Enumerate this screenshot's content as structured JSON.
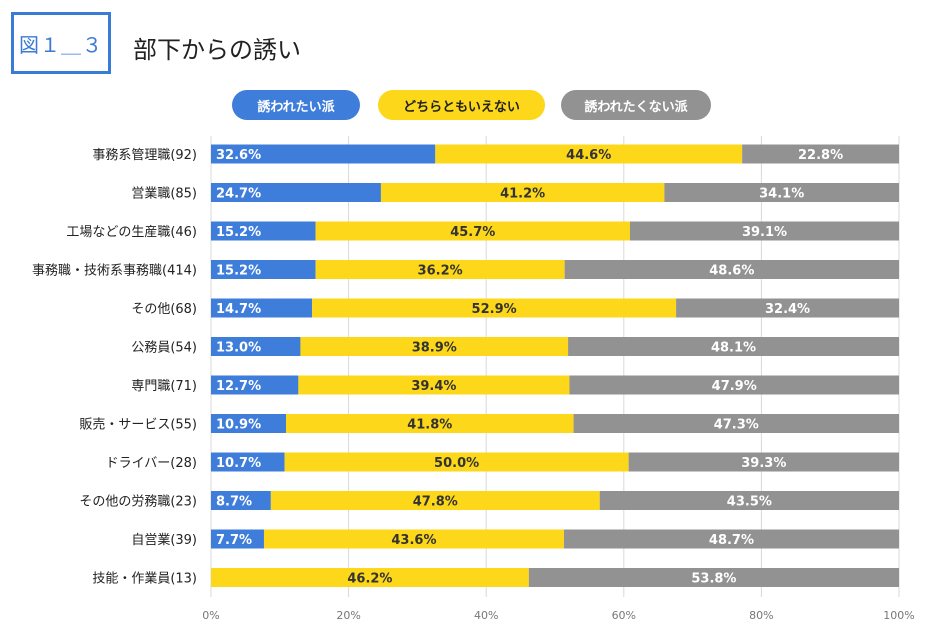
{
  "figure_label": "図１＿３",
  "title": "部下からの誘い",
  "colors": {
    "want": "#3f7ddb",
    "neutral": "#fdd719",
    "not": "#929292",
    "grid": "#d9d9d9"
  },
  "chart_data": {
    "type": "bar",
    "orientation": "horizontal",
    "stacked": true,
    "percent": true,
    "categories": [
      "事務系管理職(92)",
      "営業職(85)",
      "工場などの生産職(46)",
      "事務職・技術系事務職(414)",
      "その他(68)",
      "公務員(54)",
      "専門職(71)",
      "販売・サービス(55)",
      "ドライバー(28)",
      "その他の労務職(23)",
      "自営業(39)",
      "技能・作業員(13)"
    ],
    "series": [
      {
        "name": "誘われたい派",
        "values": [
          32.6,
          24.7,
          15.2,
          15.2,
          14.7,
          13.0,
          12.7,
          10.9,
          10.7,
          8.7,
          7.7,
          0
        ],
        "labels": [
          "32.6%",
          "24.7%",
          "15.2%",
          "15.2%",
          "14.7%",
          "13.0%",
          "12.7%",
          "10.9%",
          "10.7%",
          "8.7%",
          "7.7%",
          ""
        ]
      },
      {
        "name": "どちらともいえない",
        "values": [
          44.6,
          41.2,
          45.7,
          36.2,
          52.9,
          38.9,
          39.4,
          41.8,
          50.0,
          47.8,
          43.6,
          46.2
        ],
        "labels": [
          "44.6%",
          "41.2%",
          "45.7%",
          "36.2%",
          "52.9%",
          "38.9%",
          "39.4%",
          "41.8%",
          "50.0%",
          "47.8%",
          "43.6%",
          "46.2%"
        ]
      },
      {
        "name": "誘われたくない派",
        "values": [
          22.8,
          34.1,
          39.1,
          48.6,
          32.4,
          48.1,
          47.9,
          47.3,
          39.3,
          43.5,
          48.7,
          53.8
        ],
        "labels": [
          "22.8%",
          "34.1%",
          "39.1%",
          "48.6%",
          "32.4%",
          "48.1%",
          "47.9%",
          "47.3%",
          "39.3%",
          "43.5%",
          "48.7%",
          "53.8%"
        ]
      }
    ],
    "xlim": [
      0,
      100
    ],
    "xticks": [
      "0%",
      "20%",
      "40%",
      "60%",
      "80%",
      "100%"
    ],
    "grid": true,
    "legend_position": "top"
  }
}
